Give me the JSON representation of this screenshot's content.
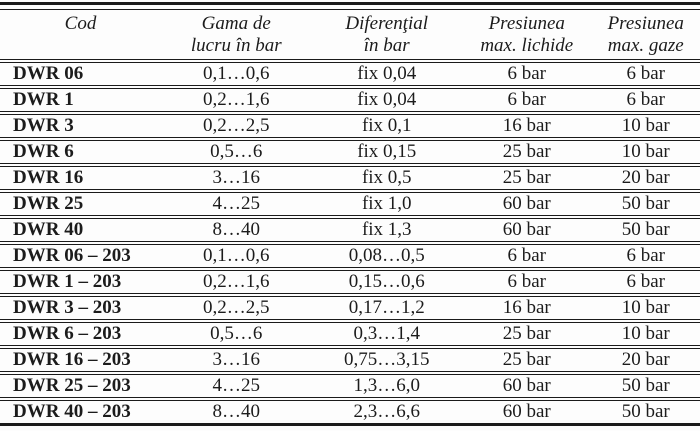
{
  "table": {
    "columns": [
      {
        "lines": [
          "Cod",
          ""
        ]
      },
      {
        "lines": [
          "Gama de",
          "lucru în bar"
        ]
      },
      {
        "lines": [
          "Diferenţial",
          "în bar"
        ]
      },
      {
        "lines": [
          "Presiunea",
          "max. lichide"
        ]
      },
      {
        "lines": [
          "Presiunea",
          "max. gaze"
        ]
      }
    ],
    "rows": [
      {
        "cod": "DWR 06",
        "gama": "0,1…0,6",
        "diferential": "fix 0,04",
        "presiune_lichide": "6 bar",
        "presiune_gaze": "6 bar"
      },
      {
        "cod": "DWR 1",
        "gama": "0,2…1,6",
        "diferential": "fix 0,04",
        "presiune_lichide": "6 bar",
        "presiune_gaze": "6 bar"
      },
      {
        "cod": "DWR 3",
        "gama": "0,2…2,5",
        "diferential": "fix 0,1",
        "presiune_lichide": "16 bar",
        "presiune_gaze": "10 bar"
      },
      {
        "cod": "DWR 6",
        "gama": "0,5…6",
        "diferential": "fix 0,15",
        "presiune_lichide": "25 bar",
        "presiune_gaze": "10 bar"
      },
      {
        "cod": "DWR 16",
        "gama": "3…16",
        "diferential": "fix 0,5",
        "presiune_lichide": "25 bar",
        "presiune_gaze": "20 bar"
      },
      {
        "cod": "DWR 25",
        "gama": "4…25",
        "diferential": "fix 1,0",
        "presiune_lichide": "60 bar",
        "presiune_gaze": "50 bar"
      },
      {
        "cod": "DWR 40",
        "gama": "8…40",
        "diferential": "fix 1,3",
        "presiune_lichide": "60 bar",
        "presiune_gaze": "50 bar"
      },
      {
        "cod": "DWR 06 – 203",
        "gama": "0,1…0,6",
        "diferential": "0,08…0,5",
        "presiune_lichide": "6 bar",
        "presiune_gaze": "6 bar"
      },
      {
        "cod": "DWR 1 – 203",
        "gama": "0,2…1,6",
        "diferential": "0,15…0,6",
        "presiune_lichide": "6 bar",
        "presiune_gaze": "6 bar"
      },
      {
        "cod": "DWR 3 – 203",
        "gama": "0,2…2,5",
        "diferential": "0,17…1,2",
        "presiune_lichide": "16 bar",
        "presiune_gaze": "10 bar"
      },
      {
        "cod": "DWR 6 – 203",
        "gama": "0,5…6",
        "diferential": "0,3…1,4",
        "presiune_lichide": "25 bar",
        "presiune_gaze": "10 bar"
      },
      {
        "cod": "DWR 16 – 203",
        "gama": "3…16",
        "diferential": "0,75…3,15",
        "presiune_lichide": "25 bar",
        "presiune_gaze": "20 bar"
      },
      {
        "cod": "DWR 25 – 203",
        "gama": "4…25",
        "diferential": "1,3…6,0",
        "presiune_lichide": "60 bar",
        "presiune_gaze": "50 bar"
      },
      {
        "cod": "DWR 40 – 203",
        "gama": "8…40",
        "diferential": "2,3…6,6",
        "presiune_lichide": "60 bar",
        "presiune_gaze": "50 bar"
      }
    ]
  },
  "colors": {
    "line": "#1b1b1b",
    "text": "#1c1c1c",
    "background": "#fdfdfd"
  }
}
